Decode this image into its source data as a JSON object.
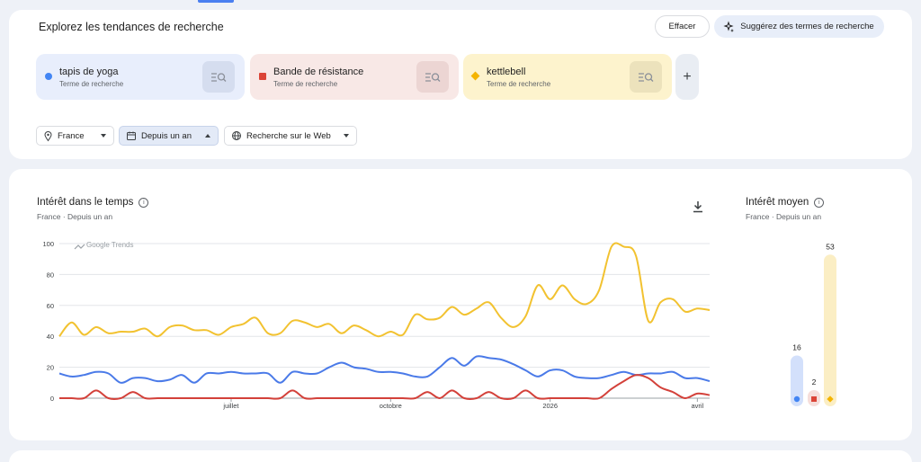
{
  "header": {
    "title": "Explorez les tendances de recherche",
    "clear_label": "Effacer",
    "suggest_label": "Suggérez des termes de recherche"
  },
  "terms": [
    {
      "name": "tapis de yoga",
      "sub": "Terme de recherche",
      "color": "#4285f4",
      "icon": "search-list-icon"
    },
    {
      "name": "Bande de résistance",
      "sub": "Terme de recherche",
      "color": "#db4437",
      "icon": "search-list-icon"
    },
    {
      "name": "kettlebell",
      "sub": "Terme de recherche",
      "color": "#f4b400",
      "icon": "search-list-icon"
    }
  ],
  "add_label": "+",
  "filters": {
    "region": "France",
    "period": "Depuis un an",
    "type": "Recherche sur le Web"
  },
  "interest_time": {
    "title": "Intérêt dans le temps",
    "subtitle": "France · Depuis un an",
    "watermark": "Google Trends"
  },
  "interest_avg": {
    "title": "Intérêt moyen",
    "subtitle": "France · Depuis un an",
    "values": [
      16,
      2,
      53
    ]
  },
  "chart_data": {
    "type": "line",
    "ylim": [
      0,
      100
    ],
    "yticks": [
      0,
      20,
      40,
      60,
      80,
      100
    ],
    "xticks": [
      {
        "label": "juillet",
        "pos": 14
      },
      {
        "label": "octobre",
        "pos": 27
      },
      {
        "label": "2026",
        "pos": 40
      },
      {
        "label": "avril",
        "pos": 52
      }
    ],
    "series": [
      {
        "name": "tapis de yoga",
        "color": "#4a7ae8",
        "values": [
          16,
          14,
          15,
          17,
          16,
          10,
          13,
          13,
          11,
          12,
          15,
          10,
          16,
          16,
          17,
          16,
          16,
          16,
          10,
          17,
          16,
          16,
          20,
          23,
          20,
          19,
          17,
          17,
          16,
          14,
          14,
          20,
          26,
          21,
          27,
          26,
          25,
          22,
          18,
          14,
          18,
          18,
          14,
          13,
          13,
          15,
          17,
          15,
          16,
          16,
          17,
          13,
          13,
          11
        ]
      },
      {
        "name": "Bande de résistance",
        "color": "#d3413a",
        "values": [
          0,
          0,
          0,
          5,
          0,
          0,
          4,
          0,
          0,
          0,
          0,
          0,
          0,
          0,
          0,
          0,
          0,
          0,
          0,
          5,
          0,
          0,
          0,
          0,
          0,
          0,
          0,
          0,
          0,
          0,
          4,
          0,
          5,
          0,
          0,
          4,
          0,
          0,
          5,
          0,
          0,
          0,
          0,
          0,
          0,
          6,
          11,
          15,
          13,
          7,
          4,
          0,
          3,
          2
        ]
      },
      {
        "name": "kettlebell",
        "color": "#f2c230",
        "values": [
          40,
          49,
          41,
          46,
          42,
          43,
          43,
          45,
          40,
          46,
          47,
          44,
          44,
          41,
          46,
          48,
          52,
          42,
          42,
          50,
          49,
          46,
          48,
          42,
          47,
          44,
          40,
          43,
          41,
          54,
          51,
          52,
          59,
          54,
          58,
          62,
          52,
          46,
          53,
          73,
          64,
          73,
          64,
          61,
          70,
          98,
          98,
          92,
          50,
          62,
          64,
          56,
          58,
          57
        ]
      }
    ]
  }
}
